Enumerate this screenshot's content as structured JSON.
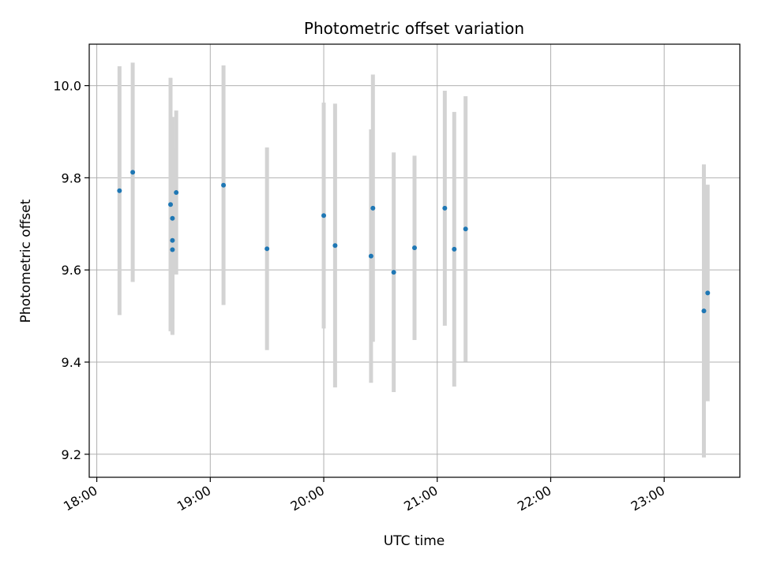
{
  "chart_data": {
    "type": "scatter",
    "title": "Photometric offset variation",
    "xlabel": "UTC time",
    "ylabel": "Photometric offset",
    "x_ticks": [
      "18:00",
      "19:00",
      "20:00",
      "21:00",
      "22:00",
      "23:00"
    ],
    "y_ticks": [
      "9.2",
      "9.4",
      "9.6",
      "9.8",
      "10.0"
    ],
    "xlim": [
      "17:56",
      "23:40"
    ],
    "ylim": [
      9.15,
      10.09
    ],
    "grid": true,
    "colors": {
      "points": "#1f77b4",
      "errorbars": "#d3d3d3",
      "grid": "#b0b0b0"
    },
    "points": [
      {
        "time": "18:12",
        "y": 9.772,
        "err": 0.27
      },
      {
        "time": "18:19",
        "y": 9.812,
        "err": 0.238
      },
      {
        "time": "18:39",
        "y": 9.742,
        "err": 0.275
      },
      {
        "time": "18:40",
        "y": 9.664,
        "err": 0.2
      },
      {
        "time": "18:40",
        "y": 9.644,
        "err": 0.185
      },
      {
        "time": "18:40",
        "y": 9.712,
        "err": 0.22
      },
      {
        "time": "18:42",
        "y": 9.768,
        "err": 0.178
      },
      {
        "time": "19:07",
        "y": 9.784,
        "err": 0.26
      },
      {
        "time": "19:30",
        "y": 9.646,
        "err": 0.22
      },
      {
        "time": "20:00",
        "y": 9.718,
        "err": 0.245
      },
      {
        "time": "20:06",
        "y": 9.653,
        "err": 0.308
      },
      {
        "time": "20:25",
        "y": 9.63,
        "err": 0.275
      },
      {
        "time": "20:26",
        "y": 9.734,
        "err": 0.29
      },
      {
        "time": "20:37",
        "y": 9.595,
        "err": 0.26
      },
      {
        "time": "20:48",
        "y": 9.648,
        "err": 0.2
      },
      {
        "time": "21:04",
        "y": 9.734,
        "err": 0.255
      },
      {
        "time": "21:09",
        "y": 9.645,
        "err": 0.298
      },
      {
        "time": "21:15",
        "y": 9.689,
        "err": 0.288
      },
      {
        "time": "23:21",
        "y": 9.511,
        "err": 0.318
      },
      {
        "time": "23:23",
        "y": 9.55,
        "err": 0.235
      }
    ]
  }
}
